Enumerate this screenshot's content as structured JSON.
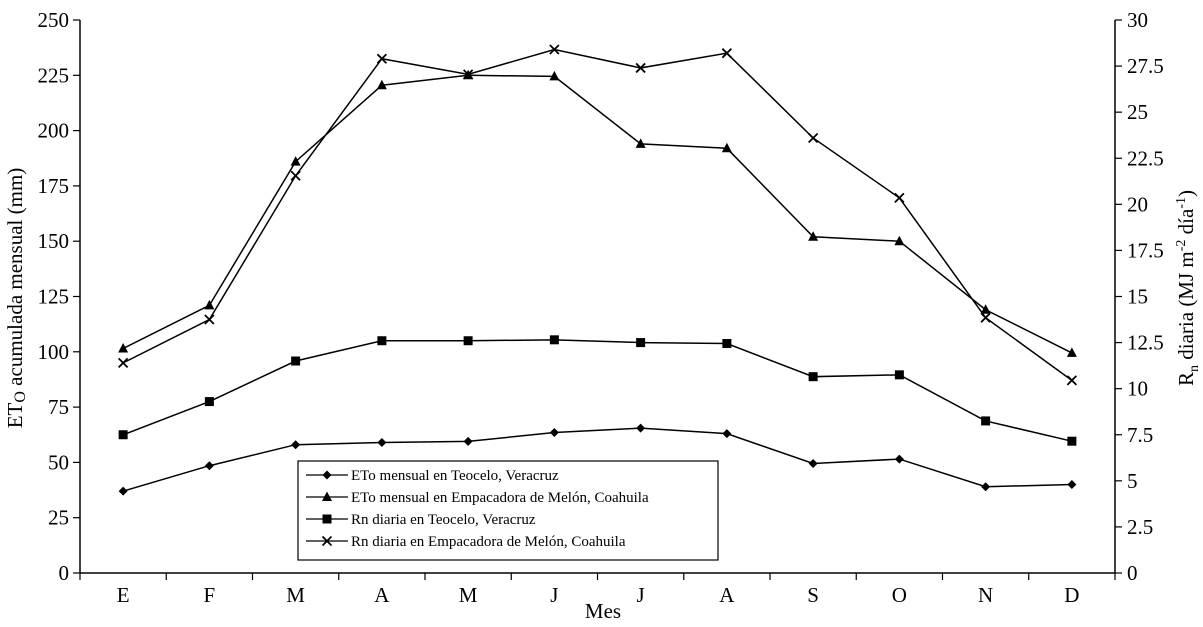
{
  "chart_data": {
    "type": "line",
    "categories": [
      "E",
      "F",
      "M",
      "A",
      "M",
      "J",
      "J",
      "A",
      "S",
      "O",
      "N",
      "D"
    ],
    "xlabel": "Mes",
    "ylabel_left": "ETo acumulada mensual (mm)",
    "ylabel_right": "Rn diaria (MJ m-2 día-1)",
    "ylim_left": [
      0,
      250
    ],
    "ylim_right": [
      0,
      30
    ],
    "yticks_left": [
      "0",
      "25",
      "50",
      "75",
      "100",
      "125",
      "150",
      "175",
      "200",
      "225",
      "250"
    ],
    "yticks_right": [
      "0",
      "2.5",
      "5",
      "7.5",
      "10",
      "12.5",
      "15",
      "17.5",
      "20",
      "22.5",
      "25",
      "27.5",
      "30"
    ],
    "grid": false,
    "legend_position": "bottom-left",
    "series": [
      {
        "name": "ETo mensual en Teocelo, Veracruz",
        "axis": "left",
        "marker": "diamond",
        "values": [
          37,
          48.5,
          58,
          59,
          59.5,
          63.5,
          65.5,
          63,
          49.5,
          51.5,
          39,
          40
        ]
      },
      {
        "name": "ETo mensual en Empacadora de Melón, Coahuila",
        "axis": "left",
        "marker": "triangle",
        "values": [
          101.5,
          121,
          186,
          220.5,
          225,
          224.5,
          194,
          192,
          152,
          150,
          119,
          99.5
        ]
      },
      {
        "name": "Rn diaria en Teocelo, Veracruz",
        "axis": "right",
        "marker": "square",
        "values": [
          7.5,
          9.3,
          11.5,
          12.6,
          12.6,
          12.65,
          12.5,
          12.45,
          10.65,
          10.75,
          8.25,
          7.15
        ]
      },
      {
        "name": "Rn diaria en Empacadora de Melón, Coahuila",
        "axis": "right",
        "marker": "x",
        "values": [
          11.4,
          13.75,
          21.55,
          27.9,
          27.05,
          28.4,
          27.4,
          28.2,
          23.6,
          20.35,
          13.85,
          10.45
        ]
      }
    ]
  }
}
